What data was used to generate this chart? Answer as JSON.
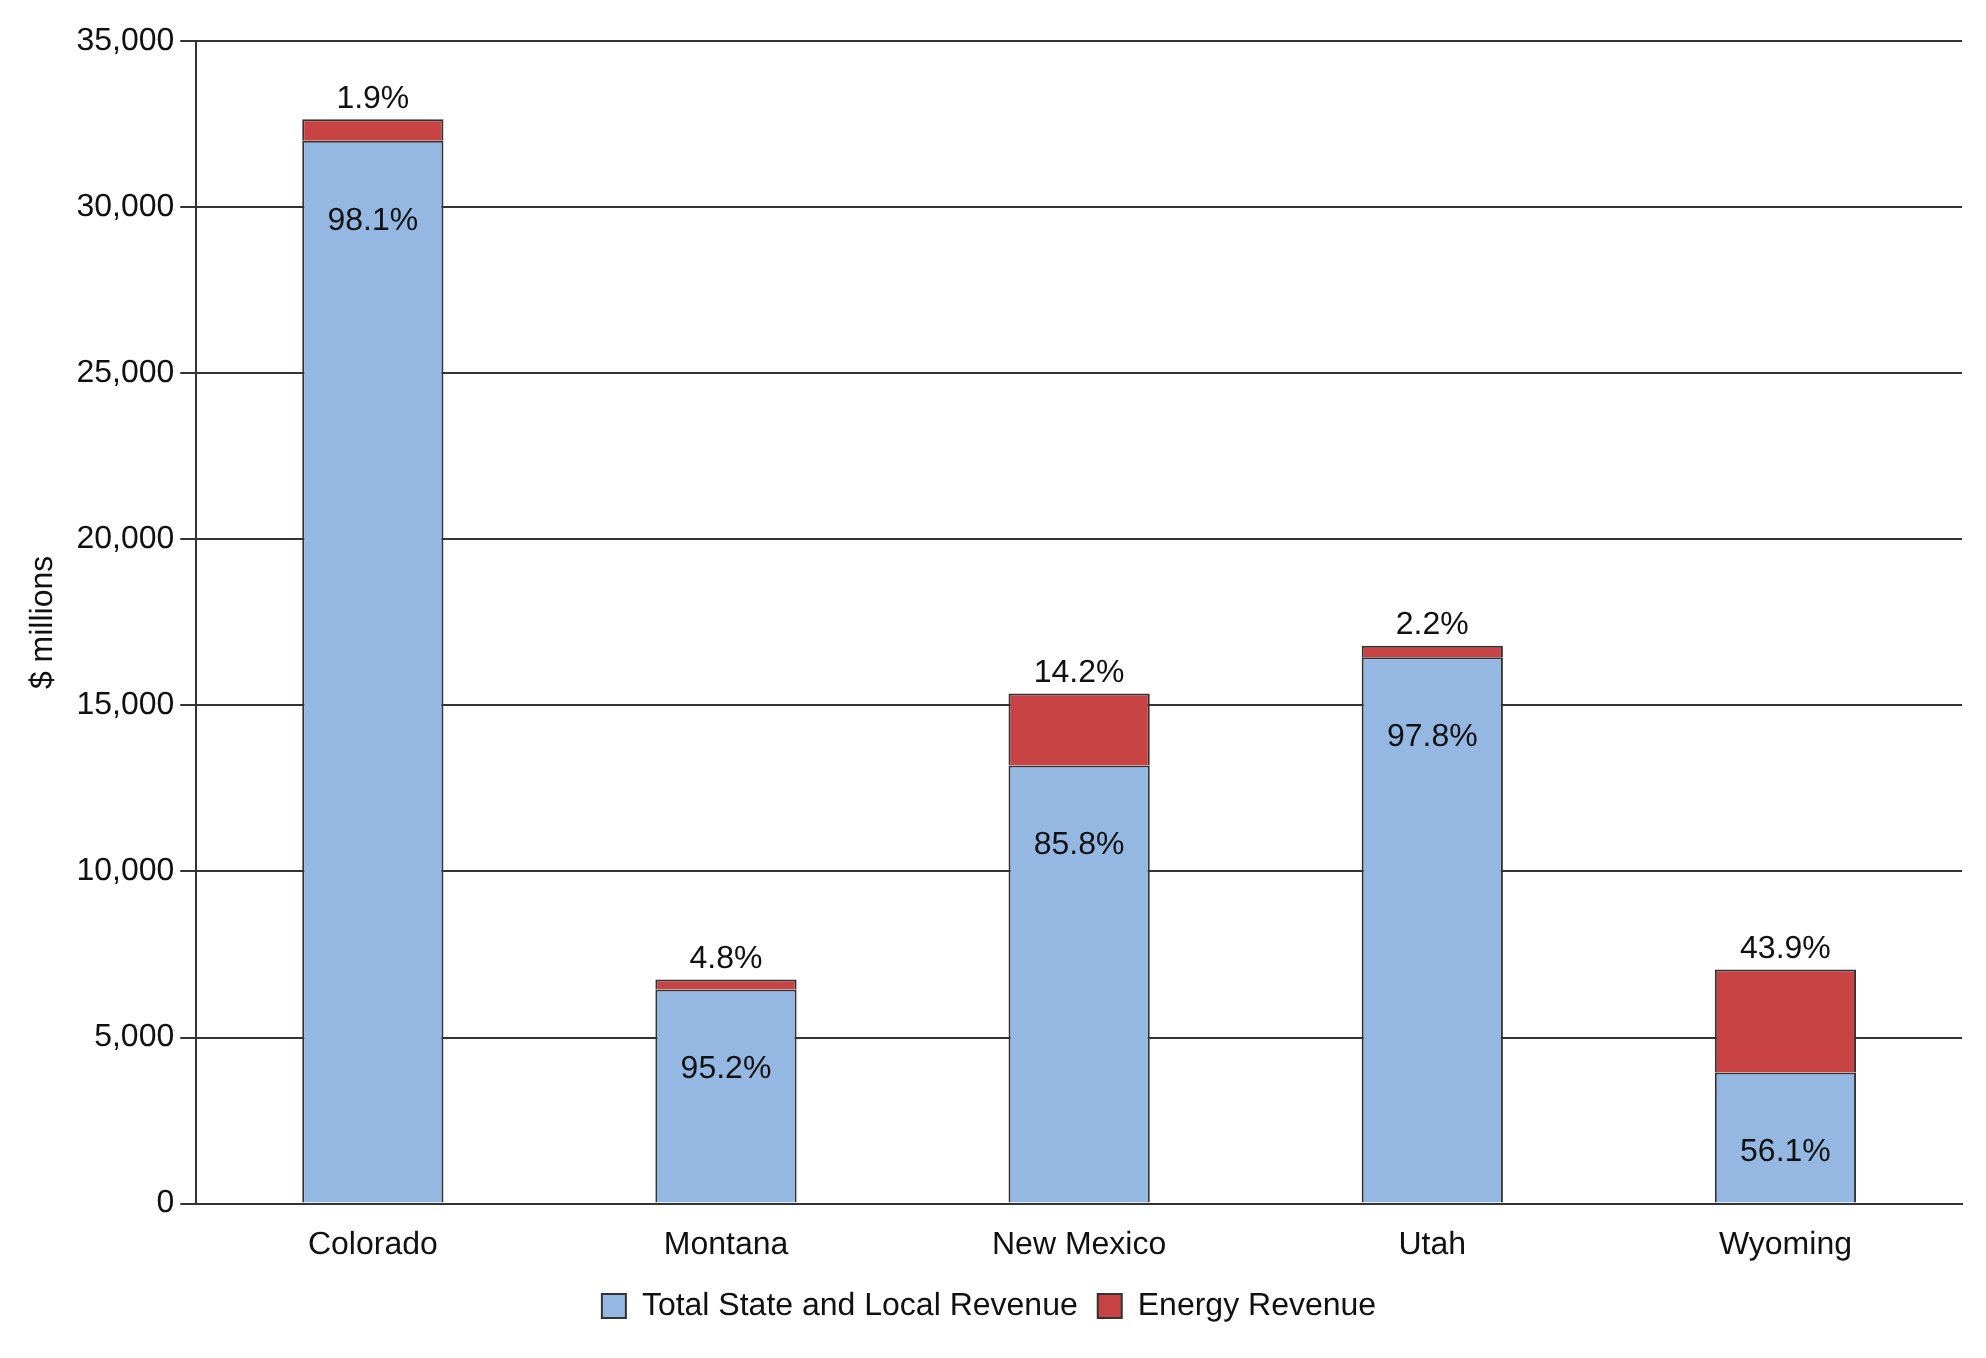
{
  "chart_data": {
    "type": "bar",
    "stacked": true,
    "ylabel": "$ millions",
    "categories": [
      "Colorado",
      "Montana",
      "New Mexico",
      "Utah",
      "Wyoming"
    ],
    "series": [
      {
        "name": "Total State and Local Revenue",
        "color": "#95b8e3",
        "values": [
          32000,
          6450,
          13190,
          16450,
          3950
        ]
      },
      {
        "name": "Energy Revenue",
        "color": "#c84444",
        "values": [
          650,
          300,
          2170,
          350,
          3100
        ]
      }
    ],
    "annotations": [
      {
        "text": "98.1%",
        "x": "Colorado",
        "y": 32000
      },
      {
        "text": "95.2%",
        "x": "Montana",
        "y": 6450
      },
      {
        "text": "85.8%",
        "x": "New Mexico",
        "y": 13190
      },
      {
        "text": "97.8%",
        "x": "Utah",
        "y": 16450
      },
      {
        "text": "56.1%",
        "x": "Wyoming",
        "y": 3950
      },
      {
        "text": "1.9%",
        "x": "Colorado",
        "y": 32650
      },
      {
        "text": "4.8%",
        "x": "Montana",
        "y": 6750
      },
      {
        "text": "14.2%",
        "x": "New Mexico",
        "y": 15360
      },
      {
        "text": "2.2%",
        "x": "Utah",
        "y": 16800
      },
      {
        "text": "43.9%",
        "x": "Wyoming",
        "y": 7050
      }
    ],
    "ylim": [
      0,
      35000
    ],
    "yticks": [
      {
        "value": 0,
        "label": "0"
      },
      {
        "value": 5000,
        "label": "5,000"
      },
      {
        "value": 10000,
        "label": "10,000"
      },
      {
        "value": 15000,
        "label": "15,000"
      },
      {
        "value": 20000,
        "label": "20,000"
      },
      {
        "value": 25000,
        "label": "25,000"
      },
      {
        "value": 30000,
        "label": "30,000"
      },
      {
        "value": 35000,
        "label": "35,000"
      }
    ],
    "grid": "y",
    "legend": "bottom"
  }
}
